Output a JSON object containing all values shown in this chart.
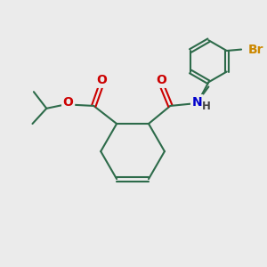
{
  "bg_color": "#ebebeb",
  "bond_color": "#2d6b4a",
  "bond_width": 1.5,
  "atom_colors": {
    "O": "#cc0000",
    "N": "#0000cc",
    "Br": "#cc8800",
    "H": "#444444",
    "C": "#2d6b4a"
  },
  "font_size_atom": 10,
  "font_size_small": 8.5
}
